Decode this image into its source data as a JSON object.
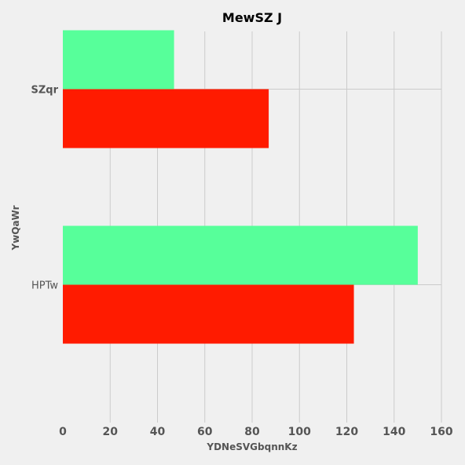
{
  "chart_data": {
    "type": "bar",
    "orientation": "horizontal",
    "title": "MewSZ J",
    "xlabel": "YDNeSVGbqnnKz",
    "ylabel": "YwQaWr",
    "categories": [
      "SZqr",
      "HPTw"
    ],
    "series": [
      {
        "values": [
          47,
          150
        ],
        "color": "#57ff9a"
      },
      {
        "values": [
          87,
          123
        ],
        "color": "#ff1b00"
      }
    ],
    "xlim": [
      0,
      160
    ],
    "xticks": [
      0,
      20,
      40,
      60,
      80,
      100,
      120,
      140,
      160
    ],
    "grid": true,
    "legend": "none"
  }
}
